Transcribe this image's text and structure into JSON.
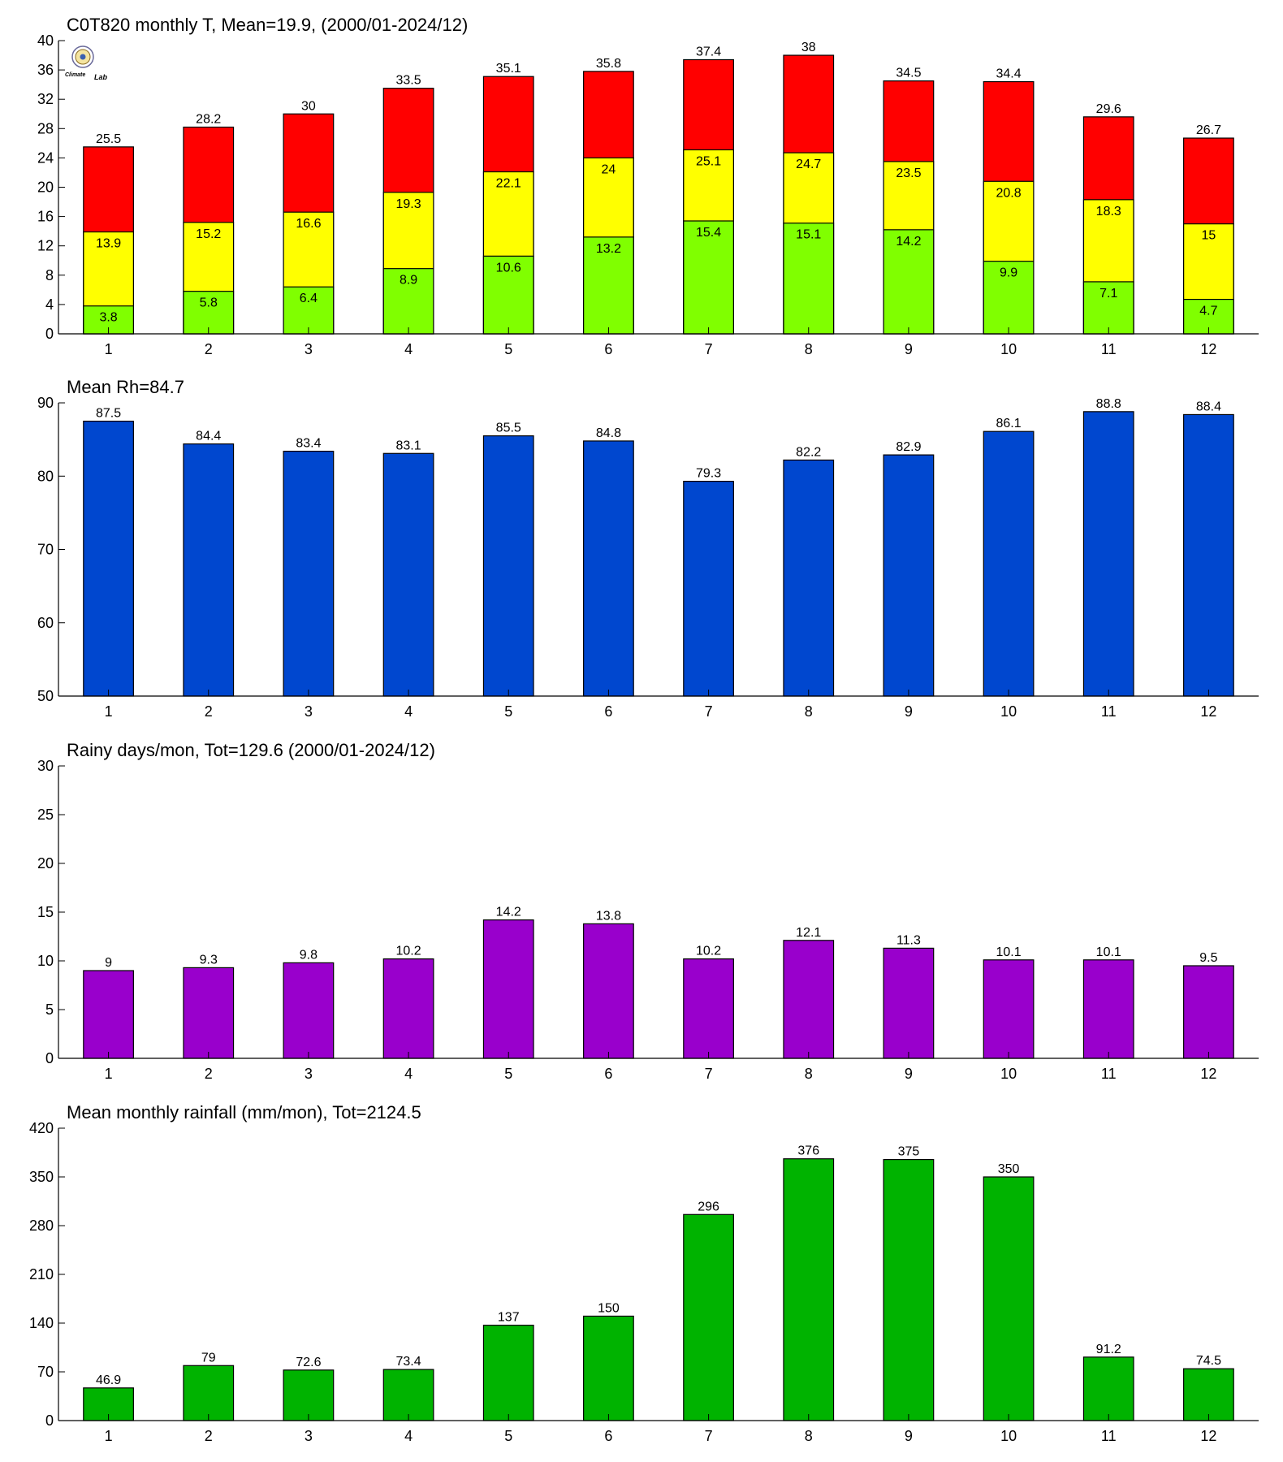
{
  "logo": {
    "top_text": "Climate",
    "bottom_text": "Lab"
  },
  "chart_data": [
    {
      "type": "bar",
      "stacked_overlay": true,
      "title": "C0T820 monthly T, Mean=19.9, (2000/01-2024/12)",
      "xlabel": "",
      "ylabel": "",
      "categories": [
        "1",
        "2",
        "3",
        "4",
        "5",
        "6",
        "7",
        "8",
        "9",
        "10",
        "11",
        "12"
      ],
      "ylim": [
        0,
        40
      ],
      "yticks": [
        0,
        4,
        8,
        12,
        16,
        20,
        24,
        28,
        32,
        36,
        40
      ],
      "grid": false,
      "series": [
        {
          "values": [
            25.5,
            28.2,
            30,
            33.5,
            35.1,
            35.8,
            37.4,
            38,
            34.5,
            34.4,
            29.6,
            26.7
          ],
          "color": "#ff0000",
          "label_position": "above"
        },
        {
          "values": [
            13.9,
            15.2,
            16.6,
            19.3,
            22.1,
            24,
            25.1,
            24.7,
            23.5,
            20.8,
            18.3,
            15
          ],
          "color": "#ffff00",
          "label_position": "inside-top"
        },
        {
          "values": [
            3.8,
            5.8,
            6.4,
            8.9,
            10.6,
            13.2,
            15.4,
            15.1,
            14.2,
            9.9,
            7.1,
            4.7
          ],
          "color": "#80ff00",
          "label_position": "inside-top"
        }
      ]
    },
    {
      "type": "bar",
      "title": "Mean Rh=84.7",
      "xlabel": "",
      "ylabel": "",
      "categories": [
        "1",
        "2",
        "3",
        "4",
        "5",
        "6",
        "7",
        "8",
        "9",
        "10",
        "11",
        "12"
      ],
      "ylim": [
        50,
        90
      ],
      "yticks": [
        50,
        60,
        70,
        80,
        90
      ],
      "grid": false,
      "series": [
        {
          "values": [
            87.5,
            84.4,
            83.4,
            83.1,
            85.5,
            84.8,
            79.3,
            82.2,
            82.9,
            86.1,
            88.8,
            88.4
          ],
          "color": "#0047cf",
          "label_position": "above"
        }
      ]
    },
    {
      "type": "bar",
      "title": "Rainy days/mon, Tot=129.6 (2000/01-2024/12)",
      "xlabel": "",
      "ylabel": "",
      "categories": [
        "1",
        "2",
        "3",
        "4",
        "5",
        "6",
        "7",
        "8",
        "9",
        "10",
        "11",
        "12"
      ],
      "ylim": [
        0,
        30
      ],
      "yticks": [
        0,
        5,
        10,
        15,
        20,
        25,
        30
      ],
      "grid": false,
      "series": [
        {
          "values": [
            9,
            9.3,
            9.8,
            10.2,
            14.2,
            13.8,
            10.2,
            12.1,
            11.3,
            10.1,
            10.1,
            9.5
          ],
          "color": "#9900cc",
          "label_position": "above"
        }
      ]
    },
    {
      "type": "bar",
      "title": "Mean monthly rainfall (mm/mon), Tot=2124.5",
      "xlabel": "",
      "ylabel": "",
      "categories": [
        "1",
        "2",
        "3",
        "4",
        "5",
        "6",
        "7",
        "8",
        "9",
        "10",
        "11",
        "12"
      ],
      "ylim": [
        0,
        420
      ],
      "yticks": [
        0,
        70,
        140,
        210,
        280,
        350,
        420
      ],
      "grid": false,
      "series": [
        {
          "values": [
            46.9,
            79,
            72.6,
            73.4,
            137,
            150,
            296,
            376,
            375,
            350,
            91.2,
            74.5
          ],
          "color": "#00b300",
          "label_position": "above"
        }
      ]
    }
  ]
}
